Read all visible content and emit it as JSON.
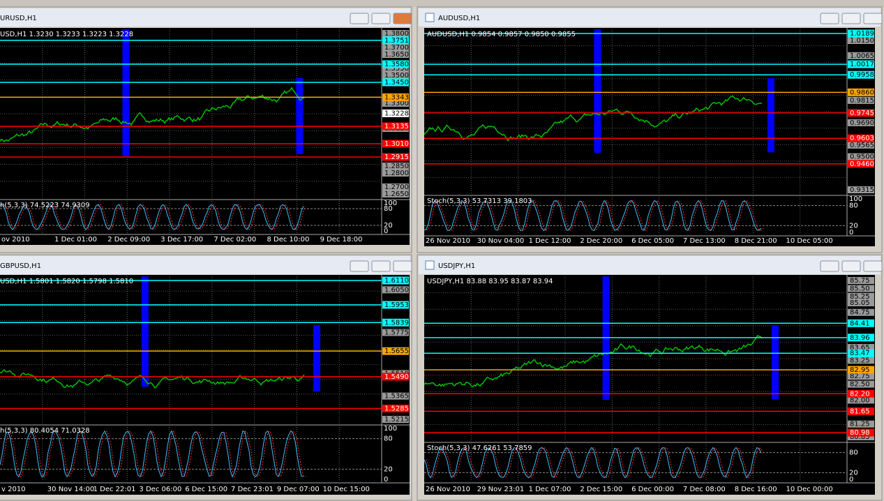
{
  "windows": [
    {
      "title": "URUSD,H1",
      "info": "USD,H1  1.3230 1.3233 1.3223 1.3228",
      "axis": [
        "1.3800",
        "1.3700",
        "1.3650",
        "1.3550",
        "1.3500",
        "1.3300",
        "1.3120",
        "1.2850",
        "1.2800",
        "1.2700",
        "1.2650"
      ],
      "levels": [
        {
          "label": "1.3751",
          "color": "cyan"
        },
        {
          "label": "1.3580",
          "color": "cyan"
        },
        {
          "label": "1.3450",
          "color": "cyan"
        },
        {
          "label": "1.3343",
          "color": "orange"
        },
        {
          "label": "1.3228",
          "color": "white"
        },
        {
          "label": "1.3135",
          "color": "red"
        },
        {
          "label": "1.3010",
          "color": "red"
        },
        {
          "label": "1.2915",
          "color": "red"
        }
      ],
      "stoch": "h(5,3,3) 74.5223 74.9309",
      "stoch_axis": [
        "100",
        "80",
        "20",
        "0"
      ],
      "dates": [
        "ov 2010",
        "1 Dec 01:00",
        "2 Dec 09:00",
        "3 Dec 17:00",
        "7 Dec 02:00",
        "8 Dec 10:00",
        "9 Dec 18:00"
      ]
    },
    {
      "title": "AUDUSD,H1",
      "info": "AUDUSD,H1  0.9854 0.9857 0.9850 0.9855",
      "axis": [
        "1.0150",
        "1.0065",
        "0.9815",
        "0.9690",
        "0.9565",
        "0.9500",
        "0.9315"
      ],
      "levels": [
        {
          "label": "1.0189",
          "color": "cyan"
        },
        {
          "label": "1.0017",
          "color": "cyan"
        },
        {
          "label": "0.9958",
          "color": "cyan"
        },
        {
          "label": "0.9860",
          "color": "orange"
        },
        {
          "label": "0.9745",
          "color": "red"
        },
        {
          "label": "0.9603",
          "color": "red"
        },
        {
          "label": "0.9460",
          "color": "red"
        }
      ],
      "stoch": "Stoch(5,3,3) 53.7313 39.1803",
      "stoch_axis": [
        "100",
        "80",
        "20",
        "0"
      ],
      "dates": [
        "26 Nov 2010",
        "30 Nov 04:00",
        "1 Dec 12:00",
        "2 Dec 20:00",
        "6 Dec 05:00",
        "7 Dec 13:00",
        "8 Dec 21:00",
        "10 Dec 05:00"
      ]
    },
    {
      "title": "GBPUSD,H1",
      "info": "USD,H1  1.5801 1.5820 1.5798 1.5810",
      "axis": [
        "1.6050",
        "1.5775",
        "1.5510",
        "1.5365",
        "1.5215"
      ],
      "levels": [
        {
          "label": "1.6110",
          "color": "cyan"
        },
        {
          "label": "1.5953",
          "color": "cyan"
        },
        {
          "label": "1.5839",
          "color": "cyan"
        },
        {
          "label": "1.5655",
          "color": "orange"
        },
        {
          "label": "1.5490",
          "color": "red"
        },
        {
          "label": "1.5285",
          "color": "red"
        }
      ],
      "stoch": "h(5,3,3) 80.4054 71.0328",
      "stoch_axis": [
        "100",
        "80",
        "20",
        "0"
      ],
      "dates": [
        "v 2010",
        "30 Nov 14:00",
        "1 Dec 22:01",
        "3 Dec 06:00",
        "6 Dec 15:00",
        "7 Dec 23:01",
        "9 Dec 07:00",
        "10 Dec 15:00"
      ]
    },
    {
      "title": "USDJPY,H1",
      "info": "USDJPY,H1  83.88 83.95 83.87 83.94",
      "axis": [
        "85.75",
        "85.50",
        "85.25",
        "85.05",
        "84.75",
        "83.65",
        "83.25",
        "82.75",
        "82.50",
        "82.00",
        "81.25",
        "80.85"
      ],
      "levels": [
        {
          "label": "84.41",
          "color": "cyan"
        },
        {
          "label": "83.96",
          "color": "cyan"
        },
        {
          "label": "83.47",
          "color": "cyan"
        },
        {
          "label": "82.95",
          "color": "orange"
        },
        {
          "label": "82.20",
          "color": "red"
        },
        {
          "label": "81.65",
          "color": "red"
        },
        {
          "label": "80.98",
          "color": "red"
        }
      ],
      "stoch": "Stoch(5,3,3) 47.6261 53.7859",
      "stoch_axis": [
        "80",
        "20",
        "0"
      ],
      "dates": [
        "26 Nov 2010",
        "29 Nov 23:01",
        "1 Dec 07:00",
        "2 Dec 15:00",
        "6 Dec 00:00",
        "7 Dec 08:00",
        "8 Dec 16:00",
        "10 Dec 00:00"
      ]
    }
  ]
}
